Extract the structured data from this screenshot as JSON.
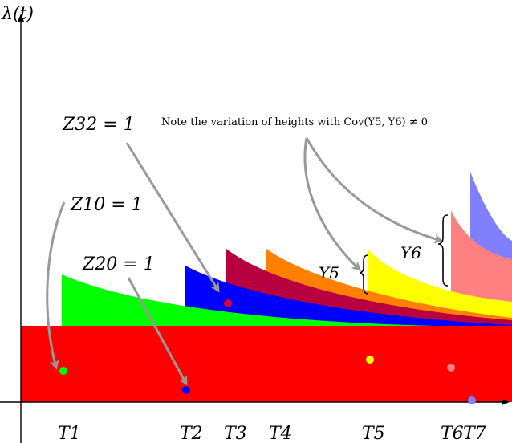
{
  "axis_label": "λ(t)",
  "note": "Note the variation of heights with Cov(Y5, Y6) ≠ 0",
  "labels": {
    "z32": "Z32 = 1",
    "z10": "Z10 = 1",
    "z20": "Z20 = 1",
    "y5": "Y5",
    "y6": "Y6"
  },
  "ticks": [
    "T1",
    "T2",
    "T3",
    "T4",
    "T5",
    "T6",
    "T7"
  ],
  "colors": {
    "base": "#ff0000",
    "green": "#00ff00",
    "blue": "#0000ff",
    "crimson": "#b80040",
    "orange": "#ff8000",
    "yellow": "#ffff00",
    "pink": "#ff8080",
    "periwinkle": "#8080ff",
    "arrow": "#999999"
  }
}
